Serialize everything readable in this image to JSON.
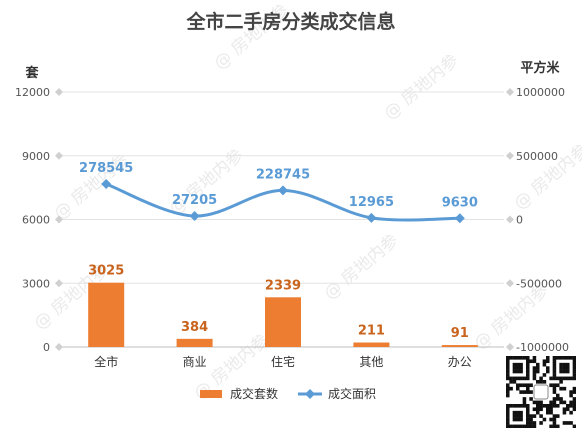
{
  "chart_data": {
    "type": "bar",
    "title": "全市二手房分类成交信息",
    "y_left_label": "套",
    "y_right_label": "平方米",
    "categories": [
      "全市",
      "商业",
      "住宅",
      "其他",
      "办公"
    ],
    "ylim_left": [
      0,
      12000
    ],
    "yticks_left": [
      "0",
      "3000",
      "6000",
      "9000",
      "12000"
    ],
    "ylim_right": [
      -1000000,
      1000000
    ],
    "yticks_right": [
      "-1000000",
      "-500000",
      "0",
      "500000",
      "1000000"
    ],
    "series": [
      {
        "name": "成交套数",
        "type": "bar",
        "axis": "left",
        "values": [
          3025,
          384,
          2339,
          211,
          91
        ],
        "labels": [
          "3025",
          "384",
          "2339",
          "211",
          "91"
        ],
        "color": "#ed7d31"
      },
      {
        "name": "成交面积",
        "type": "line",
        "axis": "right",
        "values": [
          278545,
          27205,
          228745,
          12965,
          9630
        ],
        "labels": [
          "278545",
          "27205",
          "228745",
          "12965",
          "9630"
        ],
        "color": "#5b9bd5"
      }
    ],
    "legend": "bottom",
    "grid": true
  },
  "watermark": "@ 房地内参",
  "qr_code": "qr-code"
}
